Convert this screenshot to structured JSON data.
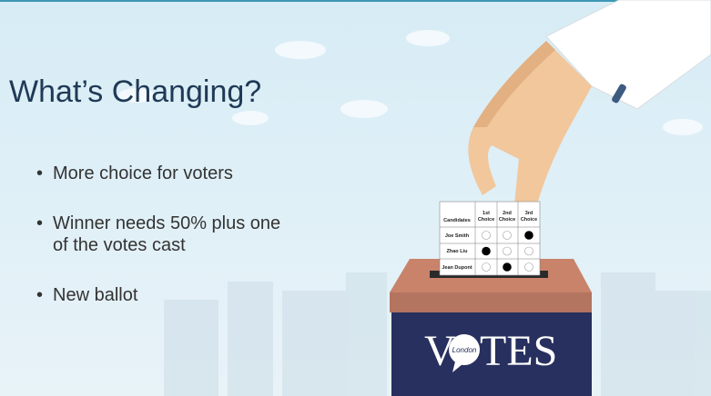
{
  "slide": {
    "title": "What’s Changing?",
    "bullets": [
      "More choice for voters",
      "Winner needs 50% plus one",
      "of the votes cast",
      "New ballot"
    ],
    "ballot": {
      "headers": [
        "Candidates",
        "1st",
        "Choice",
        "2nd",
        "Choice",
        "3rd",
        "Choice"
      ],
      "candidates": [
        "Joe Smith",
        "Zhao Liu",
        "Jean Dupont"
      ]
    },
    "logo": {
      "left": "V",
      "bubble": "London",
      "right": "TES"
    }
  }
}
